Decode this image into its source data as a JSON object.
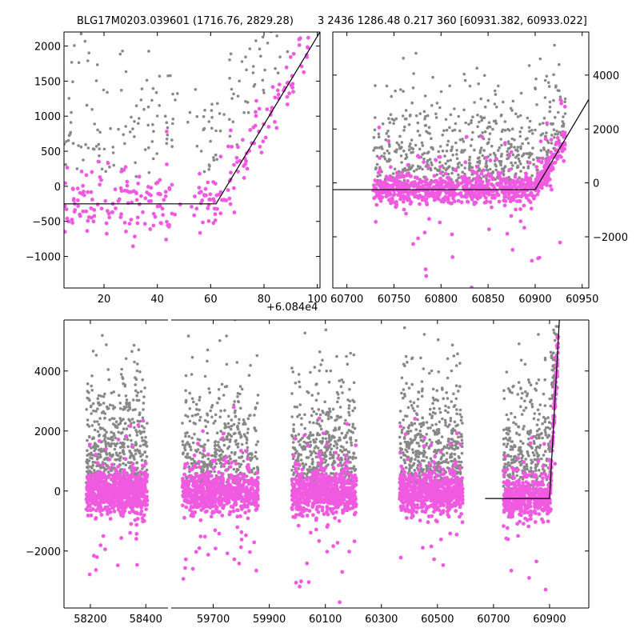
{
  "colors": {
    "background": "#ffffff",
    "gray": "#888888",
    "pink": "#f05ae0",
    "model": "#000000"
  },
  "chart_data": [
    {
      "type": "scatter",
      "name": "top-left-zoom",
      "title": "BLG17M0203.039601 (1716.76, 2829.28)",
      "x_offset_label": "+6.084e4",
      "xlim": [
        5,
        101
      ],
      "ylim": [
        -1450,
        2200
      ],
      "xticks": [
        20,
        40,
        60,
        80,
        100
      ],
      "xtick_labels": [
        "20",
        "40",
        "60",
        "80",
        "100"
      ],
      "yticks": [
        -1000,
        -500,
        0,
        500,
        1000,
        1500,
        2000
      ],
      "ytick_labels": [
        "−1000",
        "−500",
        "0",
        "500",
        "1000",
        "1500",
        "2000"
      ],
      "y_axis_side": "left",
      "model_line": {
        "x": [
          5,
          62,
          101
        ],
        "y": [
          -250,
          -250,
          2200
        ]
      },
      "series": [
        {
          "name": "gray",
          "description": "sparse gray points, mostly positive",
          "x_range": [
            5,
            97
          ],
          "typical_y_range": [
            -400,
            2100
          ]
        },
        {
          "name": "pink",
          "description": "pink points near baseline rising with model",
          "x_range": [
            5,
            97
          ],
          "typical_y_range": [
            -700,
            1900
          ]
        }
      ]
    },
    {
      "type": "scatter",
      "name": "top-right-season",
      "title": "3 2436 1286.48 0.217 360 [60931.382, 60933.022]",
      "xlim": [
        60685,
        60957
      ],
      "ylim": [
        -3900,
        5600
      ],
      "xticks": [
        60700,
        60750,
        60800,
        60850,
        60900,
        60950
      ],
      "xtick_labels": [
        "60700",
        "60750",
        "60800",
        "60850",
        "60900",
        "60950"
      ],
      "yticks": [
        -2000,
        0,
        2000,
        4000
      ],
      "ytick_labels": [
        "−2000",
        "0",
        "2000",
        "4000"
      ],
      "y_axis_side": "right",
      "model_line": {
        "x": [
          60685,
          60900,
          60957
        ],
        "y": [
          -250,
          -250,
          3100
        ]
      },
      "series": [
        {
          "name": "gray",
          "x_range": [
            60728,
            60932
          ],
          "typical_y_range": [
            -500,
            5000
          ]
        },
        {
          "name": "pink",
          "x_range": [
            60728,
            60932
          ],
          "typical_y_range": [
            -1200,
            2200
          ]
        }
      ]
    },
    {
      "type": "scatter",
      "name": "bottom-full-lightcurve",
      "title": "",
      "ylim": [
        -3900,
        5700
      ],
      "yticks": [
        -2000,
        0,
        2000,
        4000
      ],
      "ytick_labels": [
        "−2000",
        "0",
        "2000",
        "4000"
      ],
      "segments": [
        {
          "xlim": [
            58105,
            58480
          ],
          "xticks": [
            58200,
            58400
          ],
          "xtick_labels": [
            "58200",
            "58400"
          ],
          "season": [
            58185,
            58405
          ]
        },
        {
          "xlim": [
            59550,
            61040
          ],
          "xticks": [
            59700,
            59900,
            60100,
            60300,
            60500,
            60700,
            60900
          ],
          "xtick_labels": [
            "59700",
            "59900",
            "60100",
            "60300",
            "60500",
            "60700",
            "60900"
          ],
          "seasons": [
            [
              59590,
              59860
            ],
            [
              59980,
              60210
            ],
            [
              60365,
              60590
            ],
            [
              60735,
              60932
            ]
          ]
        }
      ],
      "model_line": {
        "x": [
          60670,
          60900,
          60935
        ],
        "y": [
          -250,
          -250,
          5700
        ]
      },
      "series": [
        {
          "name": "gray",
          "typical_y_range": [
            -500,
            5500
          ]
        },
        {
          "name": "pink",
          "typical_y_range": [
            -1500,
            1800
          ]
        }
      ]
    }
  ]
}
